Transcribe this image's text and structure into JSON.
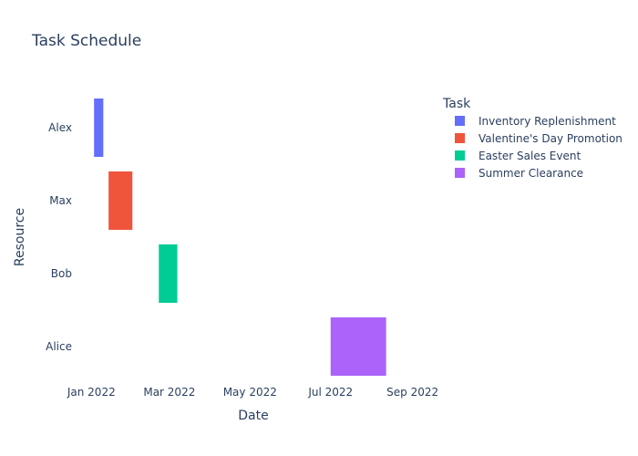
{
  "chart_data": {
    "type": "gantt",
    "title": "Task Schedule",
    "xlabel": "Date",
    "ylabel": "Resource",
    "x_ticks": [
      "Jan 2022",
      "Mar 2022",
      "May 2022",
      "Jul 2022",
      "Sep 2022"
    ],
    "x_tick_dates": [
      "2022-01-01",
      "2022-03-01",
      "2022-05-01",
      "2022-07-01",
      "2022-09-01"
    ],
    "x_range": [
      "2021-12-18",
      "2022-09-24"
    ],
    "resources": [
      "Alex",
      "Max",
      "Bob",
      "Alice"
    ],
    "legend_title": "Task",
    "legend_position": "top-right",
    "grid": false,
    "series": [
      {
        "name": "Inventory Replenishment",
        "resource": "Alex",
        "start": "2022-01-03",
        "finish": "2022-01-10",
        "color": "#636efa"
      },
      {
        "name": "Valentine's Day Promotion",
        "resource": "Max",
        "start": "2022-01-14",
        "finish": "2022-02-01",
        "color": "#EF553B"
      },
      {
        "name": "Easter Sales Event",
        "resource": "Bob",
        "start": "2022-02-21",
        "finish": "2022-03-07",
        "color": "#00cc96"
      },
      {
        "name": "Summer Clearance",
        "resource": "Alice",
        "start": "2022-07-01",
        "finish": "2022-08-12",
        "color": "#ab63fa"
      }
    ],
    "colors": {
      "text": "#2a3f5f",
      "title": "#2a3f5f",
      "background": "#ffffff"
    }
  }
}
